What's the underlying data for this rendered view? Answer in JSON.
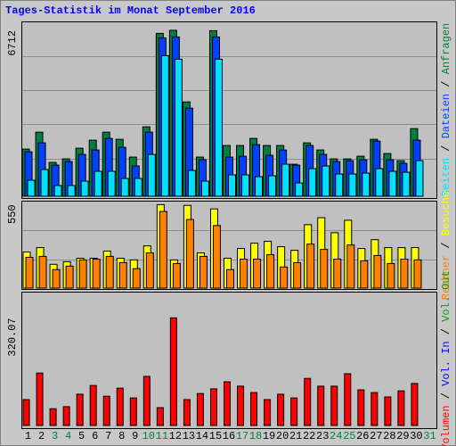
{
  "title": "Tages-Statistik im Monat September 2016",
  "legend_separator": "/",
  "chart_data": [
    {
      "type": "bar",
      "ylim": [
        0,
        7000
      ],
      "yticks": [
        6712
      ],
      "series": [
        {
          "name": "Seiten",
          "color": "#00e0ff",
          "values": [
            648,
            1080,
            432,
            432,
            612,
            1008,
            1008,
            720,
            720,
            1692,
            5688,
            5544,
            1044,
            612,
            5544,
            864,
            864,
            792,
            828,
            1296,
            540,
            1116,
            1224,
            900,
            900,
            936,
            1116,
            1008,
            972,
            1440,
            null
          ]
        },
        {
          "name": "Dateien",
          "color": "#0040ff",
          "values": [
            1800,
            2160,
            1260,
            1404,
            1692,
            1872,
            2340,
            1980,
            1224,
            2592,
            6408,
            6444,
            3564,
            1476,
            6444,
            1584,
            1620,
            2088,
            1656,
            1872,
            1260,
            2052,
            1692,
            1404,
            1440,
            1476,
            2232,
            1476,
            1332,
            2268,
            null
          ]
        },
        {
          "name": "Anfragen",
          "color": "#008040",
          "values": [
            1908,
            2592,
            1368,
            1512,
            1944,
            2268,
            2592,
            2304,
            1584,
            2808,
            6588,
            6712,
            3816,
            1584,
            6696,
            2052,
            2052,
            2340,
            2052,
            2052,
            1296,
            2160,
            1872,
            1512,
            1512,
            1620,
            2304,
            1728,
            1440,
            2736,
            null
          ]
        }
      ]
    },
    {
      "type": "bar",
      "ylim": [
        0,
        570
      ],
      "yticks": [
        550
      ],
      "series": [
        {
          "name": "Rechner",
          "color": "#ff8000",
          "values": [
            203,
            209,
            122,
            145,
            186,
            191,
            209,
            168,
            128,
            232,
            505,
            162,
            452,
            209,
            412,
            122,
            191,
            191,
            220,
            139,
            168,
            290,
            255,
            191,
            284,
            180,
            215,
            162,
            191,
            186,
            null
          ]
        },
        {
          "name": "Besuche",
          "color": "#ffff00",
          "values": [
            238,
            267,
            157,
            174,
            197,
            197,
            244,
            197,
            186,
            278,
            550,
            186,
            545,
            232,
            522,
            197,
            261,
            296,
            308,
            273,
            249,
            418,
            464,
            365,
            447,
            261,
            319,
            267,
            267,
            267,
            null
          ]
        }
      ]
    },
    {
      "type": "bar",
      "ylim": [
        0,
        390
      ],
      "yticks": [
        320.07
      ],
      "categories": [
        "1",
        "2",
        "3",
        "4",
        "5",
        "6",
        "7",
        "8",
        "9",
        "10",
        "11",
        "12",
        "13",
        "14",
        "15",
        "16",
        "17",
        "18",
        "19",
        "20",
        "21",
        "22",
        "23",
        "24",
        "25",
        "26",
        "27",
        "28",
        "29",
        "30",
        "31"
      ],
      "category_colors": [
        "#000000",
        "#000000",
        "#008040",
        "#008040",
        "#000000",
        "#000000",
        "#000000",
        "#000000",
        "#000000",
        "#008040",
        "#008040",
        "#000000",
        "#000000",
        "#000000",
        "#000000",
        "#000000",
        "#008040",
        "#008040",
        "#000000",
        "#000000",
        "#000000",
        "#000000",
        "#000000",
        "#008040",
        "#008040",
        "#000000",
        "#000000",
        "#000000",
        "#000000",
        "#000000",
        "#008040"
      ],
      "series": [
        {
          "name": "Volumen",
          "color": "#ff0000",
          "values": [
            77,
            156,
            50,
            56,
            93,
            119,
            87,
            111,
            82,
            146,
            53,
            320.07,
            77,
            95,
            109,
            130,
            117,
            98,
            77,
            93,
            82,
            140,
            117,
            117,
            154,
            106,
            98,
            85,
            103,
            125,
            null
          ]
        }
      ],
      "extra_legend": [
        {
          "name": "Vol. In",
          "color": "#0000ff"
        },
        {
          "name": "Vol. Out",
          "color": "#00a000"
        }
      ]
    }
  ]
}
